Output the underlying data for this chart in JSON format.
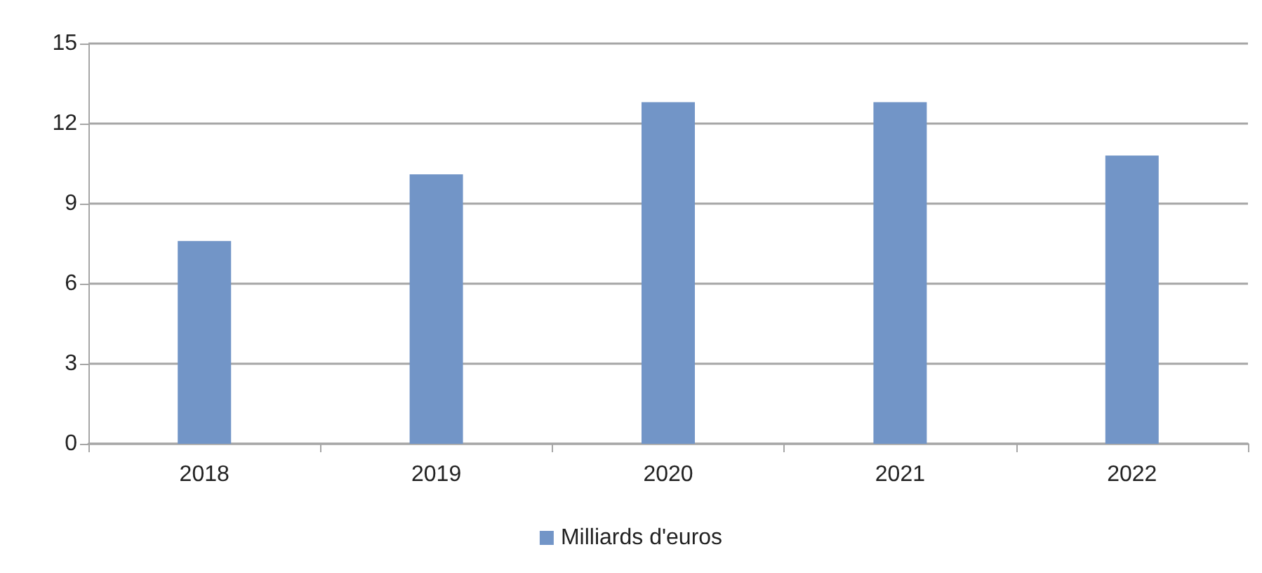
{
  "chart_data": {
    "type": "bar",
    "categories": [
      "2018",
      "2019",
      "2020",
      "2021",
      "2022"
    ],
    "series": [
      {
        "name": "Milliards d'euros",
        "color": "#7295c7",
        "values": [
          7.6,
          10.1,
          12.8,
          12.8,
          10.8
        ]
      }
    ],
    "ylim": [
      0,
      15
    ],
    "yticks": [
      0,
      3,
      6,
      9,
      12,
      15
    ],
    "grid": "y",
    "legend": "bottom"
  }
}
